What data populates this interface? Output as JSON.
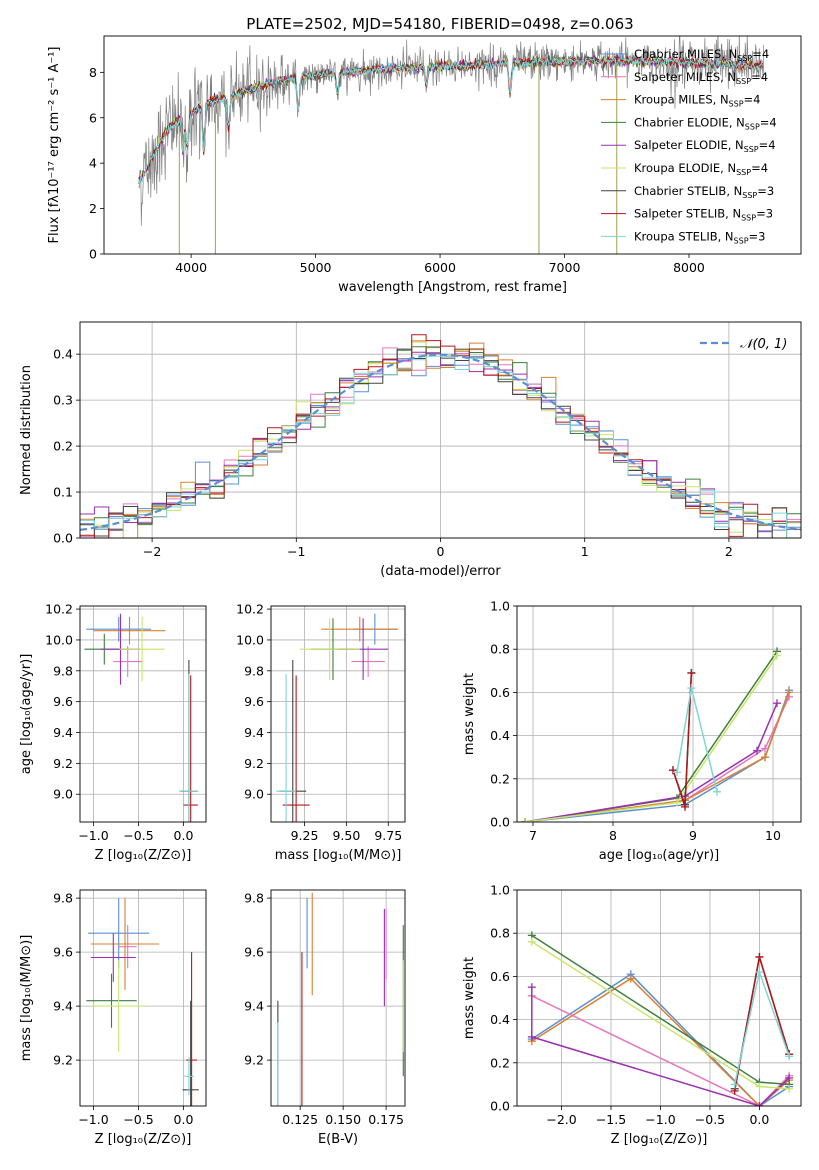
{
  "figure": {
    "title": "PLATE=2502, MJD=54180, FIBERID=0498, z=0.063"
  },
  "series_names": [
    "Chabrier MILES",
    "Salpeter MILES",
    "Kroupa MILES",
    "Chabrier ELODIE",
    "Salpeter ELODIE",
    "Kroupa ELODIE",
    "Chabrier STELIB",
    "Salpeter STELIB",
    "Kroupa STELIB"
  ],
  "series_colors": [
    "#5b8fd4",
    "#e377c2",
    "#dd7f2e",
    "#3e7f3e",
    "#9b30b0",
    "#c8e66a",
    "#444444",
    "#b2181b",
    "#7ed6d6"
  ],
  "chart_data": [
    {
      "type": "line",
      "id": "spectrum",
      "title": "PLATE=2502, MJD=54180, FIBERID=0498, z=0.063",
      "xlabel": "wavelength [Angstrom, rest frame]",
      "ylabel": "Flux [fλ10⁻¹⁷ erg cm⁻² s⁻¹ A⁻¹]",
      "xlim": [
        3300,
        8900
      ],
      "ylim": [
        0,
        9.6
      ],
      "xticks": [
        4000,
        5000,
        6000,
        7000,
        8000
      ],
      "yticks": [
        0,
        2,
        4,
        6,
        8
      ],
      "grid": false,
      "legend_position": "right",
      "legend": [
        {
          "label": "Chabrier MILES",
          "nssp": "4"
        },
        {
          "label": "Salpeter MILES",
          "nssp": "4"
        },
        {
          "label": "Kroupa MILES",
          "nssp": "4"
        },
        {
          "label": "Chabrier ELODIE",
          "nssp": "4"
        },
        {
          "label": "Salpeter ELODIE",
          "nssp": "4"
        },
        {
          "label": "Kroupa ELODIE",
          "nssp": "4"
        },
        {
          "label": "Chabrier STELIB",
          "nssp": "3"
        },
        {
          "label": "Salpeter STELIB",
          "nssp": "3"
        },
        {
          "label": "Kroupa STELIB",
          "nssp": "3"
        }
      ],
      "continuum": {
        "x": [
          3600,
          3700,
          3800,
          3900,
          4000,
          4100,
          4200,
          4300,
          4500,
          4700,
          5000,
          5300,
          5600,
          6000,
          6400,
          6800,
          7200,
          7600,
          8000,
          8400,
          8600
        ],
        "y": [
          3.3,
          4.4,
          5.4,
          5.9,
          6.2,
          6.6,
          6.8,
          6.9,
          7.3,
          7.6,
          7.9,
          8.05,
          8.15,
          8.25,
          8.35,
          8.45,
          8.5,
          8.5,
          8.45,
          8.35,
          8.3
        ]
      }
    },
    {
      "type": "histogram",
      "id": "residuals",
      "xlabel": "(data-model)/error",
      "ylabel": "Normed distribution",
      "xlim": [
        -2.5,
        2.5
      ],
      "ylim": [
        0,
        0.47
      ],
      "xticks": [
        -2,
        -1,
        0,
        1,
        2
      ],
      "yticks": [
        0.0,
        0.1,
        0.2,
        0.3,
        0.4
      ],
      "grid": true,
      "bin_width": 0.1,
      "legend_position": "top-right",
      "reference_curve": {
        "label": "𝒩(0, 1)",
        "mean": 0,
        "sigma": 1
      }
    },
    {
      "type": "scatter",
      "id": "age-vs-Z",
      "xlabel": "Z [log₁₀(Z/Z⊙)]",
      "ylabel": "age  [log₁₀(age/yr)]",
      "xlim": [
        -1.15,
        0.25
      ],
      "ylim": [
        8.82,
        10.22
      ],
      "xticks": [
        -1.0,
        -0.5,
        0.0
      ],
      "yticks": [
        9.0,
        9.2,
        9.4,
        9.6,
        9.8,
        10.0,
        10.2
      ],
      "grid": true,
      "points": [
        {
          "x": -0.72,
          "y": 10.07,
          "xerr": 0.36,
          "yerr": 0.08
        },
        {
          "x": -0.62,
          "y": 9.86,
          "xerr": 0.16,
          "yerr": 0.1
        },
        {
          "x": -0.6,
          "y": 10.06,
          "xerr": 0.4,
          "yerr": 0.09
        },
        {
          "x": -0.88,
          "y": 9.94,
          "xerr": 0.22,
          "yerr": 0.1
        },
        {
          "x": -0.7,
          "y": 9.94,
          "xerr": 0.22,
          "yerr": 0.23
        },
        {
          "x": -0.46,
          "y": 9.94,
          "xerr": 0.25,
          "yerr": 0.21
        },
        {
          "x": 0.06,
          "y": 9.02,
          "xerr": 0.09,
          "yerr": 0.85
        },
        {
          "x": 0.08,
          "y": 8.93,
          "xerr": 0.08,
          "yerr": 0.84
        },
        {
          "x": 0.06,
          "y": 9.02,
          "xerr": 0.11,
          "yerr": 0.76
        }
      ]
    },
    {
      "type": "scatter",
      "id": "age-vs-mass",
      "xlabel": "mass [log₁₀(M/M⊙)]",
      "ylabel": "",
      "xlim": [
        9.05,
        9.85
      ],
      "ylim": [
        8.82,
        10.22
      ],
      "xticks": [
        9.25,
        9.5,
        9.75
      ],
      "yticks": [
        9.0,
        9.2,
        9.4,
        9.6,
        9.8,
        10.0,
        10.2
      ],
      "grid": true,
      "points": [
        {
          "x": 9.67,
          "y": 10.07,
          "xerr": 0.13,
          "yerr": 0.1
        },
        {
          "x": 9.63,
          "y": 9.86,
          "xerr": 0.1,
          "yerr": 0.1
        },
        {
          "x": 9.58,
          "y": 10.07,
          "xerr": 0.23,
          "yerr": 0.08
        },
        {
          "x": 9.42,
          "y": 9.94,
          "xerr": 0.13,
          "yerr": 0.2
        },
        {
          "x": 9.6,
          "y": 9.94,
          "xerr": 0.15,
          "yerr": 0.2
        },
        {
          "x": 9.4,
          "y": 9.94,
          "xerr": 0.18,
          "yerr": 0.2
        },
        {
          "x": 9.18,
          "y": 9.02,
          "xerr": 0.08,
          "yerr": 0.85
        },
        {
          "x": 9.2,
          "y": 8.93,
          "xerr": 0.08,
          "yerr": 0.84
        },
        {
          "x": 9.14,
          "y": 9.02,
          "xerr": 0.06,
          "yerr": 0.76
        }
      ]
    },
    {
      "type": "line",
      "id": "weight-vs-age",
      "xlabel": "age  [log₁₀(age/yr)]",
      "ylabel": "mass weight",
      "xlim": [
        6.8,
        10.35
      ],
      "ylim": [
        0,
        1.0
      ],
      "xticks": [
        7,
        8,
        9,
        10
      ],
      "yticks": [
        0.0,
        0.2,
        0.4,
        0.6,
        0.8,
        1.0
      ],
      "grid": true,
      "series": [
        {
          "x": [
            6.9,
            8.9,
            9.9,
            10.2
          ],
          "y": [
            0.0,
            0.08,
            0.3,
            0.61
          ]
        },
        {
          "x": [
            6.9,
            8.9,
            9.9,
            10.2
          ],
          "y": [
            0.0,
            0.1,
            0.34,
            0.58
          ]
        },
        {
          "x": [
            6.9,
            8.9,
            9.9,
            10.2
          ],
          "y": [
            0.0,
            0.1,
            0.3,
            0.6
          ]
        },
        {
          "x": [
            6.9,
            8.8,
            10.05
          ],
          "y": [
            0.0,
            0.11,
            0.79
          ]
        },
        {
          "x": [
            6.9,
            8.9,
            9.8,
            10.05
          ],
          "y": [
            0.0,
            0.12,
            0.33,
            0.55
          ]
        },
        {
          "x": [
            6.9,
            8.8,
            10.05
          ],
          "y": [
            0.0,
            0.09,
            0.77
          ]
        },
        {
          "x": [
            8.75,
            8.9,
            8.98
          ],
          "y": [
            0.24,
            0.08,
            0.69
          ]
        },
        {
          "x": [
            8.75,
            8.9,
            8.98
          ],
          "y": [
            0.24,
            0.07,
            0.69
          ]
        },
        {
          "x": [
            8.8,
            8.98,
            9.3
          ],
          "y": [
            0.23,
            0.62,
            0.14
          ]
        }
      ]
    },
    {
      "type": "errorbar",
      "id": "mass-vs-Z",
      "xlabel": "Z [log₁₀(Z/Z⊙)]",
      "ylabel": "mass [log₁₀(M/M⊙)]",
      "xlim": [
        -1.15,
        0.25
      ],
      "ylim": [
        9.03,
        9.83
      ],
      "xticks": [
        -1.0,
        -0.5,
        0.0
      ],
      "yticks": [
        9.2,
        9.4,
        9.6,
        9.8
      ],
      "grid": true,
      "points": [
        {
          "x": -0.72,
          "y": 9.67,
          "xerr": 0.34,
          "yerr": 0.13
        },
        {
          "x": -0.62,
          "y": 9.62,
          "xerr": 0.1,
          "yerr": 0.08
        },
        {
          "x": -0.65,
          "y": 9.63,
          "xerr": 0.38,
          "yerr": 0.17
        },
        {
          "x": -0.8,
          "y": 9.42,
          "xerr": 0.28,
          "yerr": 0.1
        },
        {
          "x": -0.78,
          "y": 9.58,
          "xerr": 0.25,
          "yerr": 0.09
        },
        {
          "x": -0.72,
          "y": 9.4,
          "xerr": 0.3,
          "yerr": 0.17
        },
        {
          "x": 0.08,
          "y": 9.09,
          "xerr": 0.09,
          "yerr": 0.33
        },
        {
          "x": 0.09,
          "y": 9.2,
          "xerr": 0.06,
          "yerr": 0.4
        },
        {
          "x": 0.06,
          "y": 9.14,
          "xerr": 0.06,
          "yerr": 0.07
        }
      ]
    },
    {
      "type": "errorbar",
      "id": "mass-vs-ebv",
      "xlabel": "E(B-V)",
      "ylabel": "",
      "xlim": [
        0.108,
        0.186
      ],
      "ylim": [
        9.03,
        9.83
      ],
      "xticks": [
        0.125,
        0.15,
        0.175
      ],
      "yticks": [
        9.2,
        9.4,
        9.6,
        9.8
      ],
      "grid": true,
      "points": [
        {
          "x": 0.129,
          "y": 9.67,
          "yerr": 0.13
        },
        {
          "x": 0.175,
          "y": 9.63,
          "yerr": 0.13
        },
        {
          "x": 0.132,
          "y": 9.63,
          "yerr": 0.19
        },
        {
          "x": 0.185,
          "y": 9.42,
          "yerr": 0.28
        },
        {
          "x": 0.174,
          "y": 9.58,
          "yerr": 0.18
        },
        {
          "x": 0.185,
          "y": 9.4,
          "yerr": 0.17
        },
        {
          "x": 0.112,
          "y": 9.09,
          "yerr": 0.33
        },
        {
          "x": 0.126,
          "y": 9.2,
          "yerr": 0.4
        },
        {
          "x": 0.112,
          "y": 9.14,
          "yerr": 0.2
        }
      ]
    },
    {
      "type": "line",
      "id": "weight-vs-Z",
      "xlabel": "Z [log₁₀(Z/Z⊙)]",
      "ylabel": "mass weight",
      "xlim": [
        -2.45,
        0.42
      ],
      "ylim": [
        0,
        1.0
      ],
      "xticks": [
        -2.0,
        -1.5,
        -1.0,
        -0.5,
        0.0
      ],
      "yticks": [
        0.0,
        0.2,
        0.4,
        0.6,
        0.8,
        1.0
      ],
      "grid": true,
      "series": [
        {
          "x": [
            -2.3,
            -1.3,
            0.0,
            0.3
          ],
          "y": [
            0.31,
            0.61,
            0.0,
            0.09
          ]
        },
        {
          "x": [
            -2.3,
            0.0,
            0.3
          ],
          "y": [
            0.51,
            0.0,
            0.14
          ]
        },
        {
          "x": [
            -2.3,
            -1.3,
            0.0,
            0.3
          ],
          "y": [
            0.3,
            0.59,
            0.0,
            0.12
          ]
        },
        {
          "x": [
            -2.3,
            0.0,
            0.3
          ],
          "y": [
            0.79,
            0.11,
            0.1
          ]
        },
        {
          "x": [
            -2.3,
            -2.3,
            0.0,
            0.3
          ],
          "y": [
            0.55,
            0.32,
            0.0,
            0.13
          ]
        },
        {
          "x": [
            -2.3,
            0.0,
            0.3
          ],
          "y": [
            0.76,
            0.09,
            0.08
          ]
        },
        {
          "x": [
            -0.25,
            0.0,
            0.3
          ],
          "y": [
            0.08,
            0.69,
            0.24
          ]
        },
        {
          "x": [
            -0.25,
            0.0,
            0.3
          ],
          "y": [
            0.07,
            0.69,
            0.24
          ]
        },
        {
          "x": [
            -0.25,
            0.0,
            0.3
          ],
          "y": [
            0.1,
            0.62,
            0.23
          ]
        }
      ]
    }
  ]
}
